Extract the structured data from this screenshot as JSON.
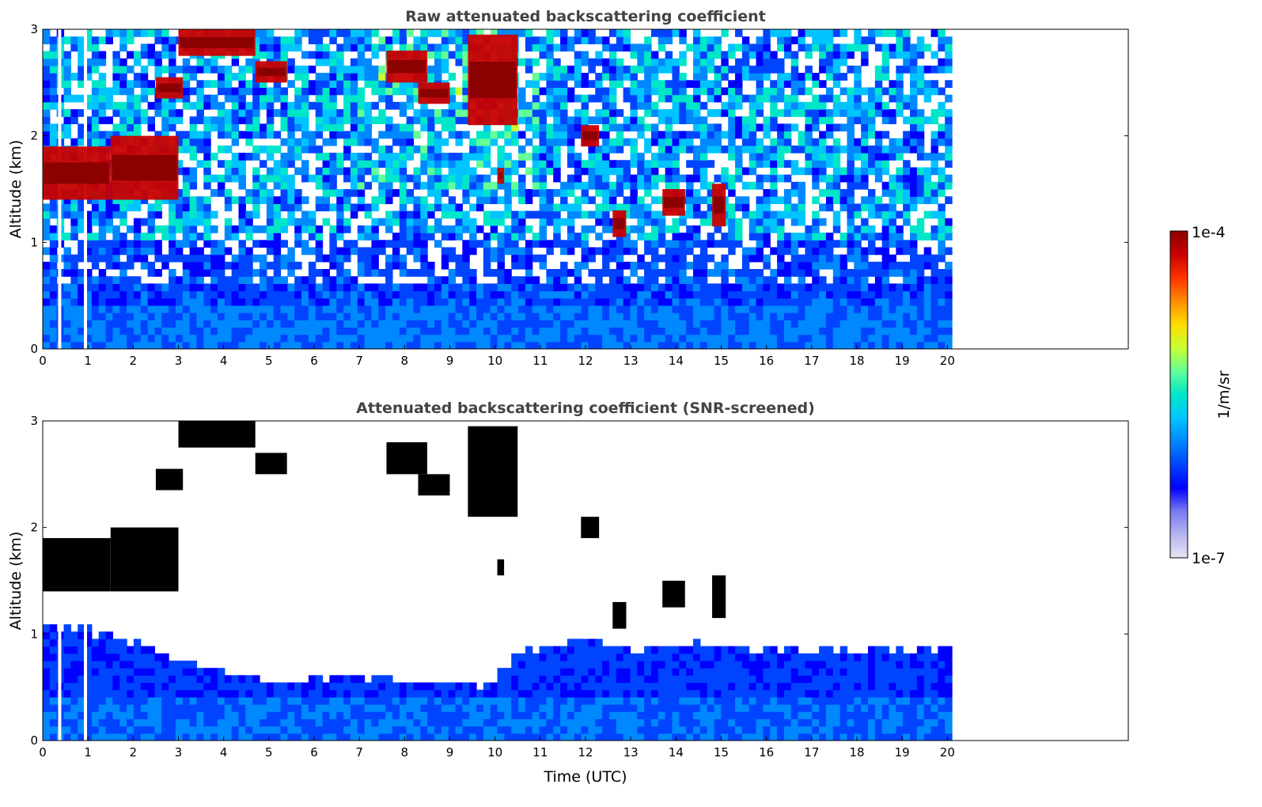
{
  "colors": {
    "colormap": [
      "#e6e6f5",
      "#b4b4ee",
      "#7878f2",
      "#0000ff",
      "#0044ff",
      "#0088ff",
      "#00c4ff",
      "#00e6c8",
      "#64ff96",
      "#c8ff32",
      "#ffdc00",
      "#ff8c00",
      "#ff3200",
      "#c80000",
      "#8b0000"
    ],
    "cloud_screened": "#000000",
    "background": "#ffffff"
  },
  "chart_data": [
    {
      "type": "heatmap",
      "title": "Raw attenuated backscattering coefficient",
      "xlabel": "",
      "ylabel": "Altitude (km)",
      "xlim": [
        0,
        24
      ],
      "ylim": [
        0,
        3
      ],
      "xticks": [
        "0",
        "1",
        "2",
        "3",
        "4",
        "5",
        "6",
        "7",
        "8",
        "9",
        "10",
        "11",
        "12",
        "13",
        "14",
        "15",
        "16",
        "17",
        "18",
        "19",
        "20"
      ],
      "yticks": [
        "0",
        "1",
        "2",
        "3"
      ],
      "data_extent_hours": [
        0,
        20.1
      ],
      "gaps_hours": [
        0.38,
        0.55,
        0.95,
        1.17
      ],
      "clouds": [
        {
          "x": [
            3.0,
            4.7
          ],
          "y": [
            2.75,
            3.0
          ]
        },
        {
          "x": [
            4.7,
            5.4
          ],
          "y": [
            2.5,
            2.7
          ]
        },
        {
          "x": [
            2.5,
            3.1
          ],
          "y": [
            2.35,
            2.55
          ]
        },
        {
          "x": [
            0.0,
            1.5
          ],
          "y": [
            1.4,
            1.9
          ]
        },
        {
          "x": [
            1.5,
            3.0
          ],
          "y": [
            1.4,
            2.0
          ]
        },
        {
          "x": [
            7.6,
            8.5
          ],
          "y": [
            2.5,
            2.8
          ]
        },
        {
          "x": [
            8.3,
            9.0
          ],
          "y": [
            2.3,
            2.5
          ]
        },
        {
          "x": [
            9.4,
            10.5
          ],
          "y": [
            2.1,
            2.95
          ]
        },
        {
          "x": [
            10.05,
            10.2
          ],
          "y": [
            1.55,
            1.7
          ]
        },
        {
          "x": [
            11.9,
            12.3
          ],
          "y": [
            1.9,
            2.1
          ]
        },
        {
          "x": [
            12.6,
            12.9
          ],
          "y": [
            1.05,
            1.3
          ]
        },
        {
          "x": [
            13.7,
            14.2
          ],
          "y": [
            1.25,
            1.5
          ]
        },
        {
          "x": [
            14.8,
            15.1
          ],
          "y": [
            1.15,
            1.55
          ]
        }
      ],
      "scale": "log",
      "units": "1/m/sr"
    },
    {
      "type": "heatmap",
      "title": "Attenuated backscattering coefficient (SNR-screened)",
      "xlabel": "Time (UTC)",
      "ylabel": "Altitude (km)",
      "xlim": [
        0,
        24
      ],
      "ylim": [
        0,
        3
      ],
      "xticks": [
        "0",
        "1",
        "2",
        "3",
        "4",
        "5",
        "6",
        "7",
        "8",
        "9",
        "10",
        "11",
        "12",
        "13",
        "14",
        "15",
        "16",
        "17",
        "18",
        "19",
        "20"
      ],
      "yticks": [
        "0",
        "1",
        "2",
        "3"
      ],
      "data_extent_hours": [
        0,
        20.1
      ],
      "signal_top_km": [
        [
          0,
          1.1
        ],
        [
          1.5,
          1.0
        ],
        [
          3,
          0.75
        ],
        [
          5,
          0.55
        ],
        [
          7,
          0.62
        ],
        [
          8,
          0.55
        ],
        [
          9,
          0.52
        ],
        [
          10,
          0.55
        ],
        [
          10.5,
          0.85
        ],
        [
          12,
          0.95
        ],
        [
          13,
          0.85
        ],
        [
          14,
          0.9
        ],
        [
          16,
          0.85
        ],
        [
          18,
          0.85
        ],
        [
          20.1,
          0.85
        ]
      ],
      "scale": "log",
      "units": "1/m/sr"
    }
  ],
  "colorbar": {
    "label": "1/m/sr",
    "max_label": "1e-4",
    "min_label": "1e-7"
  }
}
